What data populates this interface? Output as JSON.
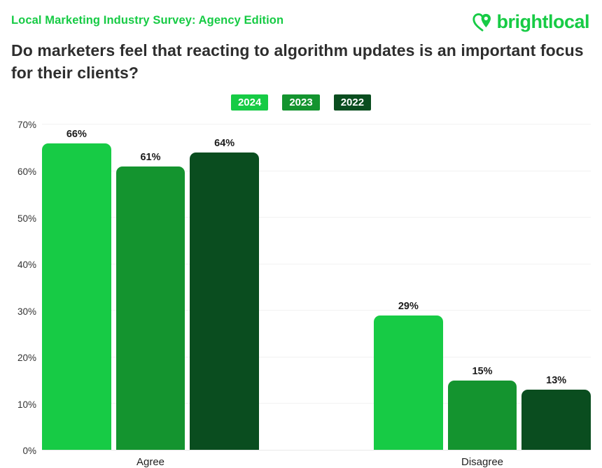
{
  "header": {
    "eyebrow": "Local Marketing Industry Survey: Agency Edition",
    "title": "Do marketers feel that reacting to algorithm updates is an important focus for their clients?",
    "logo_text": "brightlocal"
  },
  "colors": {
    "brand_green": "#17CB45",
    "series_2024": "#17CB45",
    "series_2023": "#14942F",
    "series_2022": "#0A4D1F",
    "title_text": "#2E2E2E",
    "gridline": "#F2F2F2"
  },
  "chart_data": {
    "type": "bar",
    "title": "Do marketers feel that reacting to algorithm updates is an important focus for their clients?",
    "categories": [
      "Agree",
      "Disagree"
    ],
    "series": [
      {
        "name": "2024",
        "color": "#17CB45",
        "values": [
          66,
          29
        ]
      },
      {
        "name": "2023",
        "color": "#14942F",
        "values": [
          61,
          15
        ]
      },
      {
        "name": "2022",
        "color": "#0A4D1F",
        "values": [
          64,
          13
        ]
      }
    ],
    "value_suffix": "%",
    "xlabel": "",
    "ylabel": "",
    "ylim": [
      0,
      70
    ],
    "y_ticks": [
      "0%",
      "10%",
      "20%",
      "30%",
      "40%",
      "50%",
      "60%",
      "70%"
    ],
    "grid": true,
    "legend_position": "top-center"
  }
}
